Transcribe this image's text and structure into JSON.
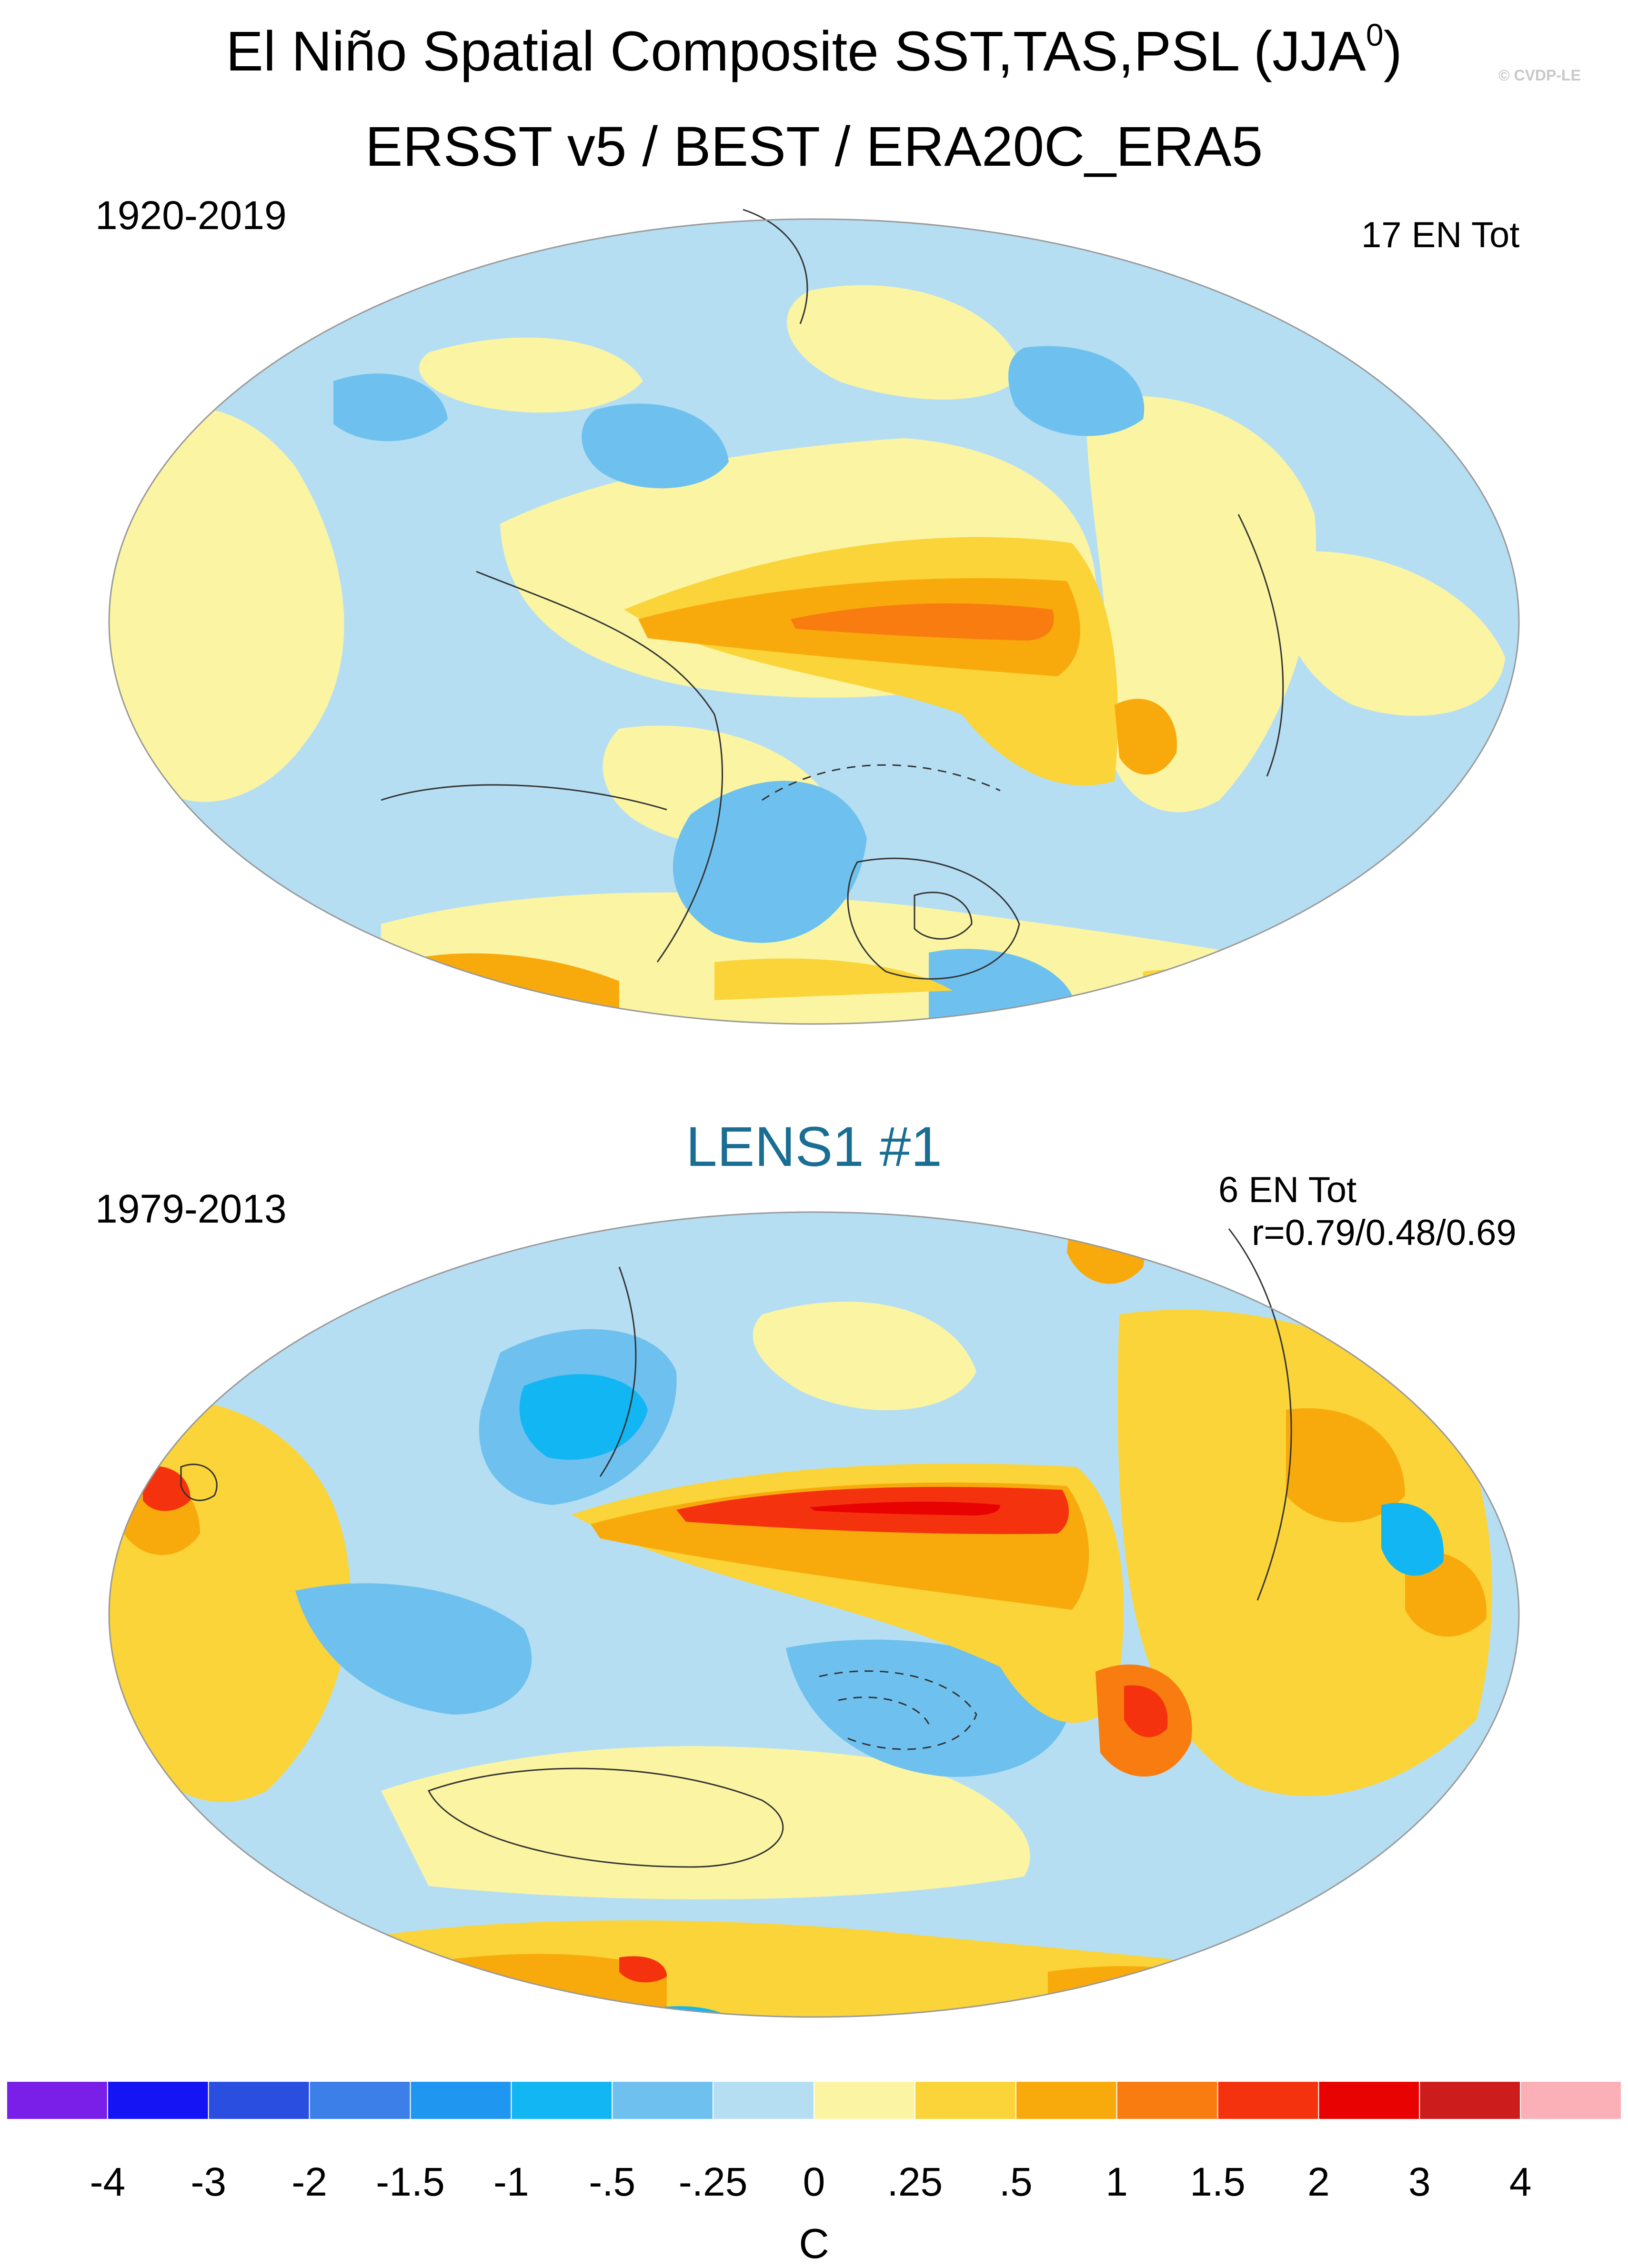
{
  "figure": {
    "title_main": "El Niño Spatial Composite SST,TAS,PSL (JJA",
    "title_sup": "0",
    "title_close": ")",
    "watermark": "© CVDP-LE"
  },
  "panels": [
    {
      "name": "observations",
      "title": "ERSST v5 / BEST / ERA20C_ERA5",
      "period": "1920-2019",
      "stat_line1": "17 EN Tot",
      "stat_line2": ""
    },
    {
      "name": "model",
      "title": "LENS1 #1",
      "title_color": "#1a6e94",
      "period": "1979-2013",
      "stat_line1": "6 EN Tot",
      "stat_line2": "r=0.79/0.48/0.69"
    }
  ],
  "colorbar": {
    "unit": "C",
    "labels": [
      "-4",
      "-3",
      "-2",
      "-1.5",
      "-1",
      "-.5",
      "-.25",
      "0",
      ".25",
      ".5",
      "1",
      "1.5",
      "2",
      "3",
      "4"
    ],
    "colors": [
      "#7a1fe8",
      "#1414f5",
      "#2a4fe0",
      "#3c7fe8",
      "#1f96f0",
      "#12b6f2",
      "#6ec1ee",
      "#b6def3",
      "#fbf5a3",
      "#fad438",
      "#f8aa0c",
      "#f87c10",
      "#f5320e",
      "#e80202",
      "#cc1c1c",
      "#fbb0b8"
    ]
  },
  "chart_data": {
    "type": "heatmap",
    "title": "El Niño Spatial Composite SST,TAS,PSL (JJA0)",
    "variable_shaded": "SST/TAS composite anomaly",
    "variable_contours": "PSL composite anomaly",
    "units": "C",
    "levels": [
      -4,
      -3,
      -2,
      -1.5,
      -1,
      -0.5,
      -0.25,
      0,
      0.25,
      0.5,
      1,
      1.5,
      2,
      3,
      4
    ],
    "panels": [
      {
        "dataset": "ERSST v5 / BEST / ERA20C_ERA5",
        "period": "1920-2019",
        "events": 17,
        "peak_anomaly_central_eastern_pacific": "1 to 1.5"
      },
      {
        "dataset": "LENS1 #1",
        "period": "1979-2013",
        "events": 6,
        "pattern_correlation": [
          0.79,
          0.48,
          0.69
        ],
        "peak_anomaly_central_eastern_pacific": "1.5 to 2"
      }
    ]
  }
}
